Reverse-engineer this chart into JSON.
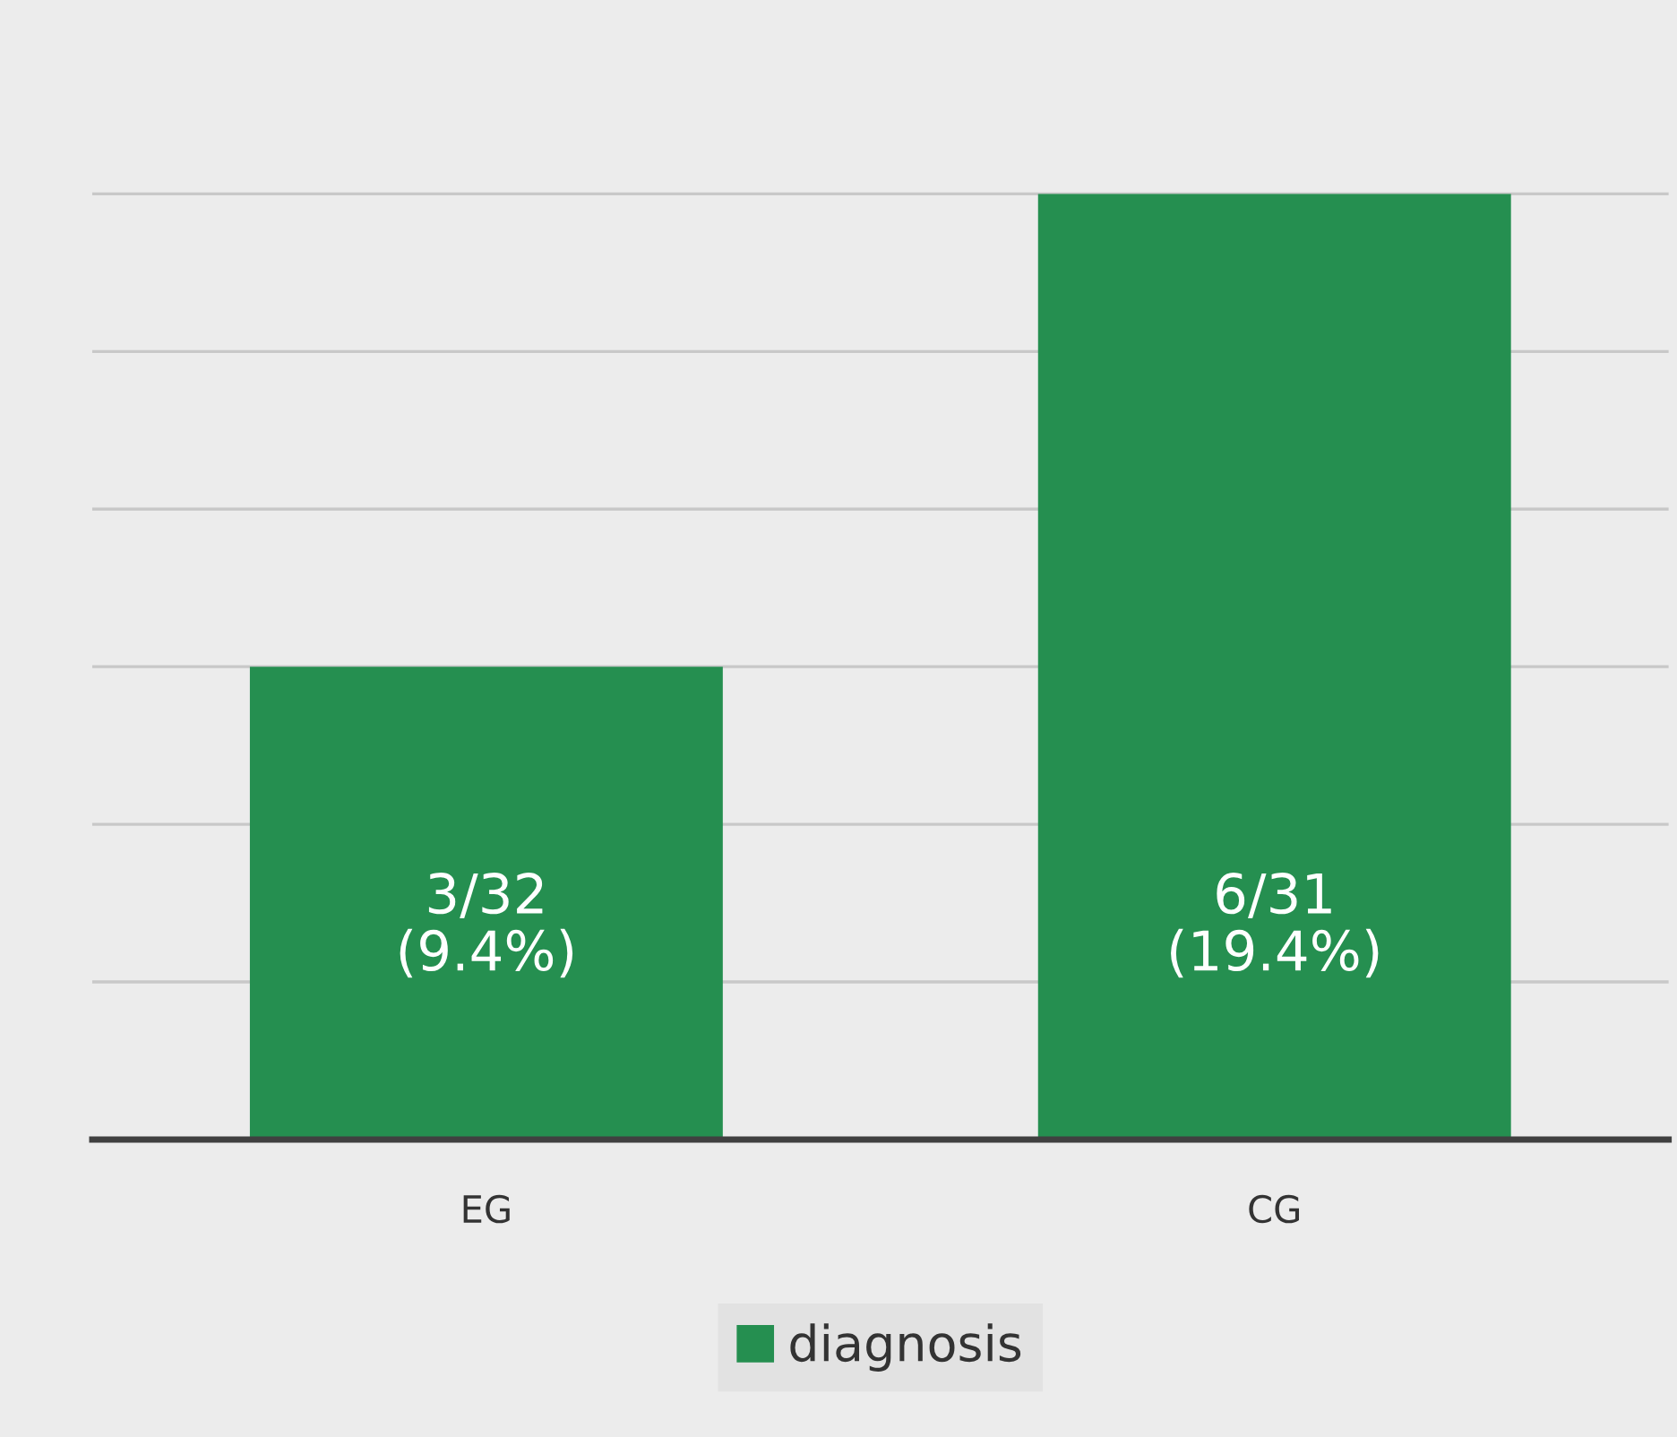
{
  "chart_data": {
    "type": "bar",
    "categories": [
      "EG",
      "CG"
    ],
    "series": [
      {
        "name": "diagnosis",
        "color": "#258f50",
        "values": [
          3,
          6
        ],
        "value_labels": [
          "3/32\n(9.4%)",
          "6/31\n(19.4%)"
        ]
      }
    ],
    "yticks": [
      {
        "value": 1,
        "label": null
      },
      {
        "value": 2,
        "label": null
      },
      {
        "value": 3,
        "label": null
      },
      {
        "value": 4,
        "label": null
      },
      {
        "value": 5,
        "label": null
      },
      {
        "value": 6,
        "label": null
      }
    ],
    "grid": "y",
    "legend": "bottom",
    "tick_labels": "x"
  }
}
